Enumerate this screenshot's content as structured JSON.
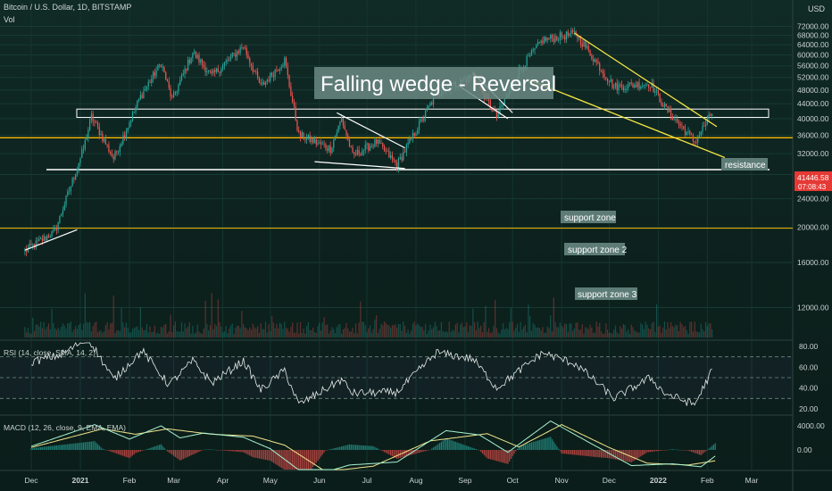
{
  "header": {
    "symbol_title": "Bitcoin / U.S. Dollar, 1D, BITSTAMP",
    "volume_label": "Vol",
    "currency": "USD"
  },
  "price_tag": {
    "value": "41446.58",
    "countdown": "07:08:43"
  },
  "annotations": {
    "headline": "Falling wedge - Reversal",
    "resistance": "resistance",
    "support_zone": "support zone",
    "support_zone_2": "support zone 2",
    "support_zone_3": "support zone 3"
  },
  "indicators": {
    "rsi_title": "RSI (14, close, SMA, 14, 2)",
    "macd_title": "MACD (12, 26, close, 9, EMA, EMA)"
  },
  "colors": {
    "bull": "#26a69a",
    "bear": "#ef5350",
    "support": "#f5b800",
    "wedge": "#f5e642",
    "white": "#ffffff",
    "price_tag": "#e53935"
  },
  "chart_data": {
    "type": "candlestick",
    "y_scale": "log",
    "ylim": [
      10500,
      76000
    ],
    "price_ticks": [
      72000,
      68000,
      64000,
      60000,
      56000,
      52000,
      48000,
      44000,
      40000,
      36000,
      32000,
      28000,
      24000,
      20000,
      16000,
      12000
    ],
    "x_labels": [
      "Dec",
      "2021",
      "Feb",
      "Mar",
      "Apr",
      "May",
      "Jun",
      "Jul",
      "Aug",
      "Sep",
      "Oct",
      "Nov",
      "Dec",
      "2022",
      "Feb",
      "Mar"
    ],
    "price_path": [
      [
        "2020-11-27",
        17200
      ],
      [
        "2020-12-16",
        19500
      ],
      [
        "2021-01-03",
        33000
      ],
      [
        "2021-01-08",
        40500
      ],
      [
        "2021-01-22",
        31000
      ],
      [
        "2021-02-08",
        46000
      ],
      [
        "2021-02-21",
        57000
      ],
      [
        "2021-02-28",
        45000
      ],
      [
        "2021-03-13",
        61000
      ],
      [
        "2021-03-25",
        52500
      ],
      [
        "2021-04-14",
        63500
      ],
      [
        "2021-04-25",
        49000
      ],
      [
        "2021-05-10",
        58000
      ],
      [
        "2021-05-19",
        36000
      ],
      [
        "2021-06-08",
        33000
      ],
      [
        "2021-06-15",
        40000
      ],
      [
        "2021-06-22",
        31500
      ],
      [
        "2021-07-07",
        34500
      ],
      [
        "2021-07-20",
        29800
      ],
      [
        "2021-08-14",
        47000
      ],
      [
        "2021-09-06",
        52500
      ],
      [
        "2021-09-21",
        40500
      ],
      [
        "2021-10-06",
        55000
      ],
      [
        "2021-10-20",
        66000
      ],
      [
        "2021-11-10",
        68800
      ],
      [
        "2021-11-27",
        54000
      ],
      [
        "2021-12-04",
        49000
      ],
      [
        "2021-12-27",
        50000
      ],
      [
        "2022-01-05",
        43000
      ],
      [
        "2022-01-24",
        34500
      ],
      [
        "2022-02-04",
        41446
      ]
    ],
    "levels": {
      "resistance_band": [
        40300,
        42500
      ],
      "support_zone": 35400,
      "support_zone_2": 28900,
      "support_zone_3": 19900
    },
    "wedge": {
      "upper": [
        [
          "2021-11-09",
          69000
        ],
        [
          "2022-02-07",
          38000
        ]
      ],
      "lower": [
        [
          "2021-10-10",
          51500
        ],
        [
          "2022-02-12",
          31200
        ]
      ]
    },
    "rsi": {
      "ticks": [
        80,
        60,
        40,
        20
      ],
      "bands": [
        70,
        50,
        30
      ],
      "path": [
        [
          "2020-12-01",
          65
        ],
        [
          "2020-12-20",
          72
        ],
        [
          "2021-01-06",
          88
        ],
        [
          "2021-01-22",
          48
        ],
        [
          "2021-02-09",
          76
        ],
        [
          "2021-02-26",
          43
        ],
        [
          "2021-03-13",
          66
        ],
        [
          "2021-03-25",
          45
        ],
        [
          "2021-04-14",
          66
        ],
        [
          "2021-04-25",
          38
        ],
        [
          "2021-05-10",
          57
        ],
        [
          "2021-05-19",
          24
        ],
        [
          "2021-06-15",
          48
        ],
        [
          "2021-06-22",
          35
        ],
        [
          "2021-07-20",
          36
        ],
        [
          "2021-08-14",
          74
        ],
        [
          "2021-09-06",
          68
        ],
        [
          "2021-09-21",
          40
        ],
        [
          "2021-10-20",
          74
        ],
        [
          "2021-11-10",
          63
        ],
        [
          "2021-11-27",
          40
        ],
        [
          "2021-12-04",
          30
        ],
        [
          "2021-12-27",
          50
        ],
        [
          "2022-01-05",
          35
        ],
        [
          "2022-01-24",
          24
        ],
        [
          "2022-02-04",
          57
        ]
      ]
    },
    "macd": {
      "ticks": [
        4000,
        0
      ],
      "macd_path": [
        [
          "2020-12-01",
          600
        ],
        [
          "2021-01-10",
          4200
        ],
        [
          "2021-02-01",
          1800
        ],
        [
          "2021-02-21",
          4000
        ],
        [
          "2021-03-05",
          2000
        ],
        [
          "2021-03-20",
          2800
        ],
        [
          "2021-04-14",
          2100
        ],
        [
          "2021-05-01",
          200
        ],
        [
          "2021-05-25",
          -4500
        ],
        [
          "2021-06-20",
          -2500
        ],
        [
          "2021-07-20",
          -2000
        ],
        [
          "2021-08-20",
          3200
        ],
        [
          "2021-09-10",
          2500
        ],
        [
          "2021-09-28",
          -400
        ],
        [
          "2021-10-25",
          4800
        ],
        [
          "2021-11-20",
          1000
        ],
        [
          "2021-12-15",
          -2600
        ],
        [
          "2022-01-10",
          -2300
        ],
        [
          "2022-01-28",
          -2800
        ],
        [
          "2022-02-06",
          -1000
        ]
      ],
      "signal_path": [
        [
          "2020-12-01",
          400
        ],
        [
          "2021-01-15",
          3500
        ],
        [
          "2021-02-05",
          2600
        ],
        [
          "2021-02-25",
          3500
        ],
        [
          "2021-03-25",
          2600
        ],
        [
          "2021-04-20",
          2300
        ],
        [
          "2021-05-10",
          800
        ],
        [
          "2021-06-05",
          -3600
        ],
        [
          "2021-07-05",
          -2700
        ],
        [
          "2021-08-10",
          1500
        ],
        [
          "2021-09-15",
          2700
        ],
        [
          "2021-10-05",
          500
        ],
        [
          "2021-11-01",
          4200
        ],
        [
          "2021-12-01",
          400
        ],
        [
          "2021-12-25",
          -2200
        ],
        [
          "2022-01-20",
          -2500
        ],
        [
          "2022-02-06",
          -1800
        ]
      ]
    }
  }
}
